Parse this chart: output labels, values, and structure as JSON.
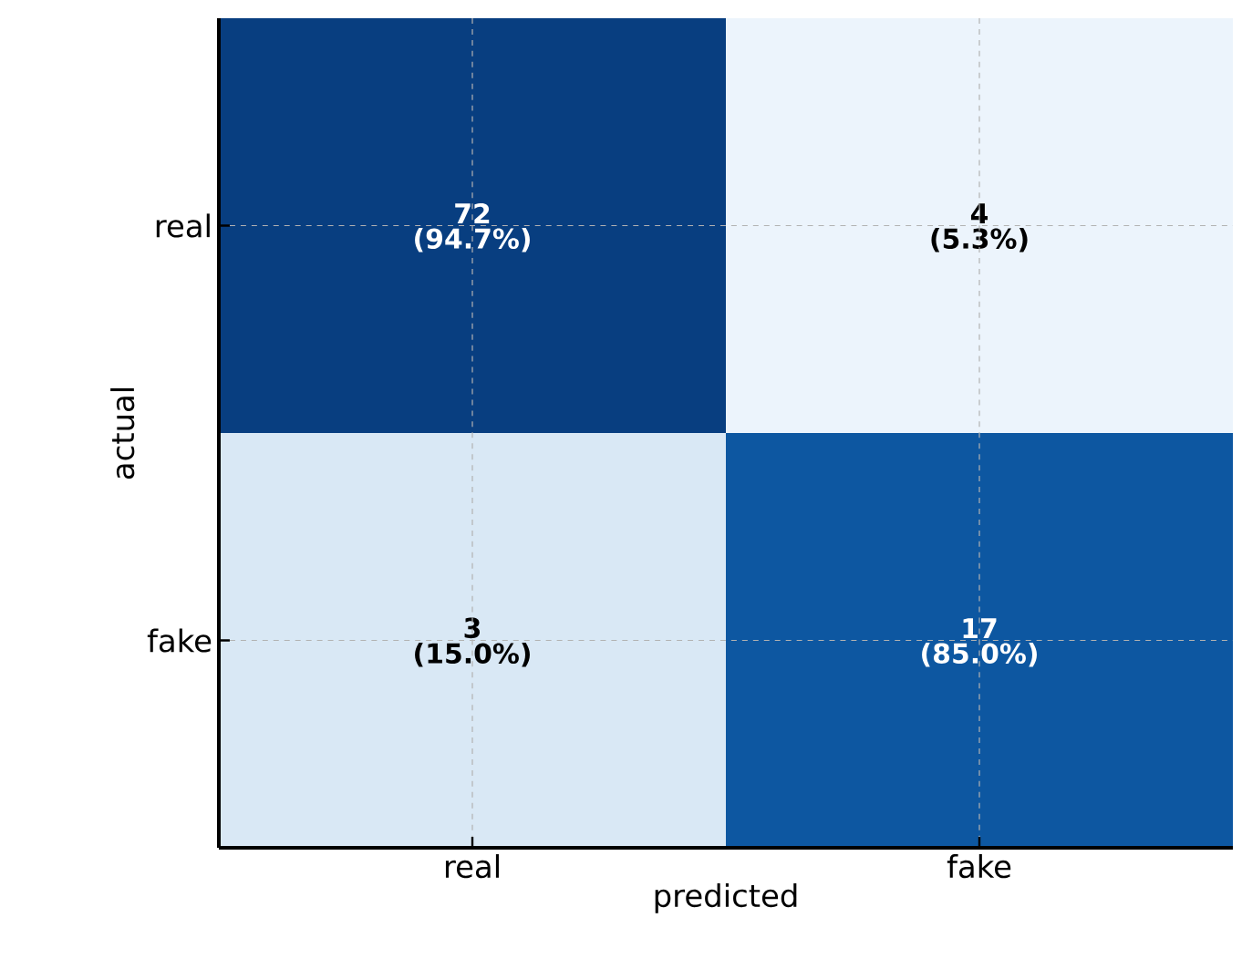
{
  "chart_data": {
    "type": "heatmap",
    "xlabel": "predicted",
    "ylabel": "actual",
    "categories": [
      "real",
      "fake"
    ],
    "y_categories": [
      "real",
      "fake"
    ],
    "cells": [
      [
        72,
        4
      ],
      [
        3,
        17
      ]
    ],
    "annotations": [
      "(94.7%)",
      "(5.3%)",
      "(15.0%)",
      "(85.0%)"
    ],
    "data_labels": true,
    "grid": true
  }
}
